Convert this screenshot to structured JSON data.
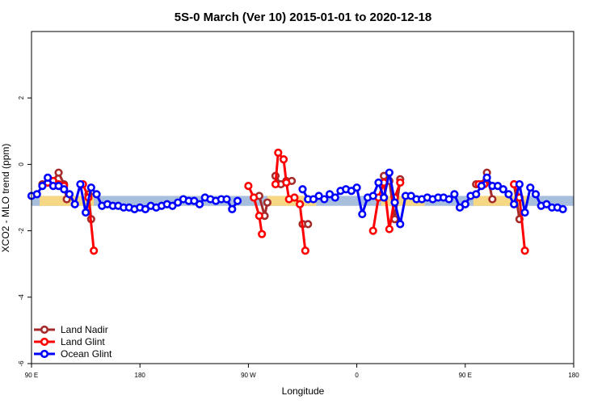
{
  "chart_data": {
    "type": "line",
    "title": "5S-0 March (Ver 10)   2015-01-01 to 2020-12-18",
    "xlabel": "Longitude",
    "ylabel": "XCO2 - MLO trend (ppm)",
    "xlim": [
      0,
      100
    ],
    "ylim": [
      -6,
      4
    ],
    "x_ticks": [
      {
        "pos": 0,
        "label": "90 E"
      },
      {
        "pos": 20,
        "label": "180"
      },
      {
        "pos": 40,
        "label": "90 W"
      },
      {
        "pos": 60,
        "label": "0"
      },
      {
        "pos": 80,
        "label": "90 E"
      },
      {
        "pos": 100,
        "label": "180"
      }
    ],
    "y_ticks": [
      -6,
      -4,
      -2,
      0,
      2
    ],
    "grid": false,
    "legend_position": "bottom-left",
    "band": {
      "y_low": -1.25,
      "y_high": -0.95,
      "color": "#a8bedd"
    },
    "band_highlights": [
      {
        "x0": 1.5,
        "x1": 11.5,
        "color": "#fdd97a"
      },
      {
        "x0": 43.5,
        "x1": 52.5,
        "color": "#fdd97a"
      },
      {
        "x0": 64.5,
        "x1": 72.5,
        "color": "#fdd97a"
      },
      {
        "x0": 81.5,
        "x1": 91.5,
        "color": "#fdd97a"
      }
    ],
    "series": [
      {
        "name": "Land Nadir",
        "color": "#a52a2a",
        "segments": [
          [
            [
              2,
              -0.6
            ],
            [
              3,
              -0.55
            ],
            [
              4,
              -0.5
            ],
            [
              5,
              -0.25
            ],
            [
              6,
              -0.6
            ],
            [
              6.5,
              -1.05
            ]
          ],
          [
            [
              10.5,
              -0.9
            ],
            [
              11,
              -1.65
            ]
          ],
          [
            [
              42,
              -0.95
            ],
            [
              43,
              -1.55
            ],
            [
              43.5,
              -1.15
            ]
          ],
          [
            [
              45,
              -0.35
            ],
            [
              46,
              -0.6
            ],
            [
              47,
              -0.5
            ],
            [
              48,
              -0.5
            ]
          ],
          [
            [
              50,
              -1.8
            ],
            [
              51,
              -1.8
            ]
          ],
          [
            [
              65,
              -0.35
            ],
            [
              66,
              -0.5
            ],
            [
              67,
              -1.65
            ],
            [
              68,
              -0.45
            ]
          ],
          [
            [
              82,
              -0.6
            ],
            [
              83,
              -0.6
            ],
            [
              84,
              -0.25
            ],
            [
              85,
              -1.05
            ]
          ],
          [
            [
              89,
              -0.6
            ],
            [
              90,
              -1.65
            ]
          ]
        ]
      },
      {
        "name": "Land Glint",
        "color": "#ff0000",
        "segments": [
          [
            [
              3,
              -0.55
            ],
            [
              4,
              -0.5
            ],
            [
              5,
              -0.6
            ],
            [
              6,
              -0.65
            ]
          ],
          [
            [
              9.5,
              -0.6
            ],
            [
              10.5,
              -1.0
            ],
            [
              11.5,
              -2.6
            ]
          ],
          [
            [
              40,
              -0.65
            ],
            [
              41,
              -1.0
            ],
            [
              42,
              -1.55
            ],
            [
              42.5,
              -2.1
            ]
          ],
          [
            [
              45,
              -0.6
            ],
            [
              45.5,
              0.35
            ],
            [
              46.5,
              0.15
            ],
            [
              47,
              -0.55
            ],
            [
              47.5,
              -1.05
            ],
            [
              48.5,
              -1.0
            ],
            [
              49.5,
              -1.2
            ],
            [
              50.5,
              -2.6
            ]
          ],
          [
            [
              63,
              -2.0
            ],
            [
              64,
              -1.0
            ],
            [
              65,
              -0.55
            ],
            [
              66,
              -1.95
            ],
            [
              67,
              -1.0
            ],
            [
              68,
              -0.55
            ]
          ],
          [
            [
              82.5,
              -0.6
            ],
            [
              83.5,
              -0.6
            ]
          ],
          [
            [
              89,
              -0.6
            ],
            [
              90,
              -1.0
            ],
            [
              91,
              -2.6
            ]
          ]
        ]
      },
      {
        "name": "Ocean Glint",
        "color": "#0000ff",
        "segments": [
          [
            [
              0,
              -0.95
            ],
            [
              1,
              -0.9
            ],
            [
              2,
              -0.65
            ],
            [
              3,
              -0.4
            ],
            [
              4,
              -0.65
            ],
            [
              5,
              -0.65
            ],
            [
              6,
              -0.75
            ],
            [
              7,
              -0.9
            ],
            [
              8,
              -1.2
            ],
            [
              9,
              -0.6
            ],
            [
              10,
              -1.45
            ],
            [
              11,
              -0.7
            ],
            [
              12,
              -0.9
            ],
            [
              13,
              -1.25
            ],
            [
              14,
              -1.2
            ],
            [
              15,
              -1.25
            ],
            [
              16,
              -1.25
            ],
            [
              17,
              -1.3
            ],
            [
              18,
              -1.3
            ],
            [
              19,
              -1.35
            ],
            [
              20,
              -1.3
            ],
            [
              21,
              -1.35
            ],
            [
              22,
              -1.25
            ],
            [
              23,
              -1.3
            ],
            [
              24,
              -1.25
            ],
            [
              25,
              -1.2
            ],
            [
              26,
              -1.25
            ],
            [
              27,
              -1.15
            ],
            [
              28,
              -1.05
            ],
            [
              29,
              -1.1
            ],
            [
              30,
              -1.1
            ],
            [
              31,
              -1.2
            ],
            [
              32,
              -1.0
            ],
            [
              33,
              -1.05
            ],
            [
              34,
              -1.1
            ],
            [
              35,
              -1.05
            ],
            [
              36,
              -1.05
            ],
            [
              37,
              -1.35
            ],
            [
              38,
              -1.1
            ]
          ],
          [
            [
              50,
              -0.75
            ],
            [
              51,
              -1.05
            ],
            [
              52,
              -1.05
            ],
            [
              53,
              -0.95
            ],
            [
              54,
              -1.05
            ],
            [
              55,
              -0.9
            ],
            [
              56,
              -1.0
            ],
            [
              57,
              -0.8
            ],
            [
              58,
              -0.75
            ],
            [
              59,
              -0.8
            ],
            [
              60,
              -0.7
            ],
            [
              61,
              -1.5
            ],
            [
              62,
              -1.0
            ],
            [
              63,
              -0.95
            ],
            [
              64,
              -0.55
            ],
            [
              65,
              -1.0
            ],
            [
              66,
              -0.25
            ],
            [
              67,
              -1.15
            ],
            [
              68,
              -1.8
            ],
            [
              69,
              -0.95
            ],
            [
              70,
              -0.95
            ],
            [
              71,
              -1.05
            ],
            [
              72,
              -1.05
            ],
            [
              73,
              -1.0
            ],
            [
              74,
              -1.05
            ],
            [
              75,
              -1.0
            ],
            [
              76,
              -1.0
            ],
            [
              77,
              -1.05
            ],
            [
              78,
              -0.9
            ],
            [
              79,
              -1.3
            ],
            [
              80,
              -1.2
            ],
            [
              81,
              -0.95
            ],
            [
              82,
              -0.9
            ],
            [
              83,
              -0.65
            ],
            [
              84,
              -0.4
            ],
            [
              85,
              -0.65
            ],
            [
              86,
              -0.65
            ],
            [
              87,
              -0.75
            ],
            [
              88,
              -0.9
            ],
            [
              89,
              -1.2
            ],
            [
              90,
              -0.6
            ],
            [
              91,
              -1.45
            ],
            [
              92,
              -0.7
            ],
            [
              93,
              -0.9
            ],
            [
              94,
              -1.25
            ],
            [
              95,
              -1.2
            ],
            [
              96,
              -1.3
            ],
            [
              97,
              -1.3
            ],
            [
              98,
              -1.35
            ]
          ]
        ]
      }
    ]
  }
}
